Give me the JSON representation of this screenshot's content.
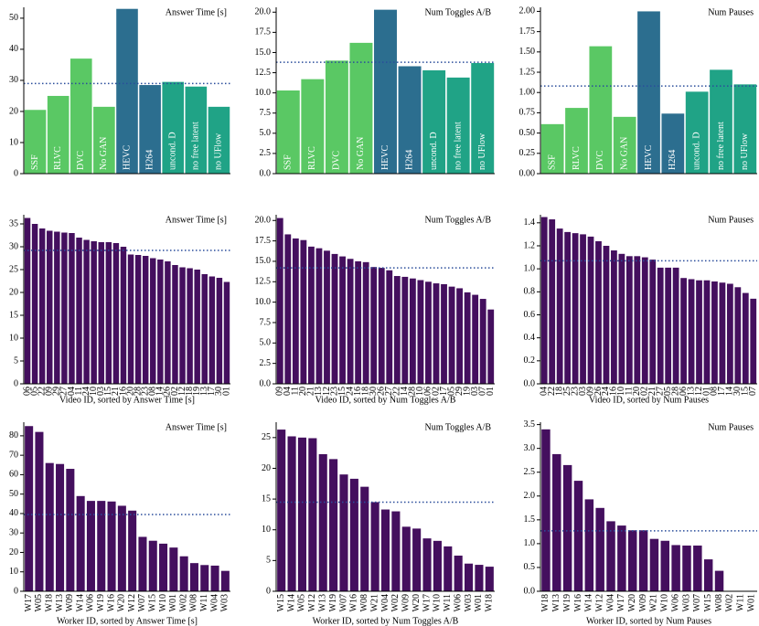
{
  "chart_data": [
    {
      "type": "bar",
      "title": "Answer Time [s]",
      "categories": [
        "SSF",
        "RLVC",
        "DVC",
        "No GAN",
        "HEVC",
        "H264",
        "uncond. D",
        "no free latent",
        "no UFlow"
      ],
      "values": [
        20.5,
        25,
        37,
        21.5,
        53,
        28.5,
        29.5,
        28,
        21.5
      ],
      "colors": [
        "#5ac864",
        "#5ac864",
        "#5ac864",
        "#5ac864",
        "#2c6e8f",
        "#2c6e8f",
        "#20a386",
        "#20a386",
        "#20a386"
      ],
      "mean": 29,
      "ylim": [
        0,
        53.5
      ],
      "yticks": [
        0,
        10,
        20,
        30,
        40,
        50
      ]
    },
    {
      "type": "bar",
      "title": "Num Toggles A/B",
      "categories": [
        "SSF",
        "RLVC",
        "DVC",
        "No GAN",
        "HEVC",
        "H264",
        "uncond. D",
        "no free latent",
        "no UFlow"
      ],
      "values": [
        10.3,
        11.7,
        14,
        16.2,
        20.3,
        13.3,
        12.8,
        11.9,
        13.7
      ],
      "colors": [
        "#5ac864",
        "#5ac864",
        "#5ac864",
        "#5ac864",
        "#2c6e8f",
        "#2c6e8f",
        "#20a386",
        "#20a386",
        "#20a386"
      ],
      "mean": 13.8,
      "ylim": [
        0,
        20.6
      ],
      "yticks": [
        {
          "value": 0,
          "label": "0.0"
        },
        2.5,
        {
          "value": 5,
          "label": "5.0"
        },
        7.5,
        {
          "value": 10,
          "label": "10.0"
        },
        12.5,
        {
          "value": 15,
          "label": "15.0"
        },
        17.5,
        {
          "value": 20,
          "label": "20.0"
        }
      ]
    },
    {
      "type": "bar",
      "title": "Num Pauses",
      "categories": [
        "SSF",
        "RLVC",
        "DVC",
        "No GAN",
        "HEVC",
        "H264",
        "uncond. D",
        "no free latent",
        "no UFlow"
      ],
      "values": [
        0.61,
        0.81,
        1.57,
        0.7,
        2.0,
        0.74,
        1.01,
        1.28,
        1.1
      ],
      "colors": [
        "#5ac864",
        "#5ac864",
        "#5ac864",
        "#5ac864",
        "#2c6e8f",
        "#2c6e8f",
        "#20a386",
        "#20a386",
        "#20a386"
      ],
      "mean": 1.08,
      "ylim": [
        0,
        2.05
      ],
      "yticks": [
        {
          "value": 0,
          "label": "0.00"
        },
        0.25,
        {
          "value": 0.5,
          "label": "0.50"
        },
        0.75,
        {
          "value": 1,
          "label": "1.00"
        },
        1.25,
        {
          "value": 1.5,
          "label": "1.50"
        },
        1.75,
        {
          "value": 2,
          "label": "2.00"
        }
      ]
    },
    {
      "type": "bar",
      "title": "Answer Time [s]",
      "xlabel": "Video ID, sorted by Answer Time [s]",
      "categories": [
        "06",
        "05",
        "22",
        "09",
        "29",
        "27",
        "04",
        "11",
        "24",
        "10",
        "03",
        "15",
        "21",
        "16",
        "20",
        "28",
        "23",
        "08",
        "14",
        "26",
        "02",
        "12",
        "18",
        "19",
        "13",
        "17",
        "30",
        "01"
      ],
      "values": [
        36.3,
        35,
        34,
        33.5,
        33.3,
        33.1,
        33,
        32,
        31.5,
        31.2,
        31,
        31,
        30.8,
        30,
        28.3,
        28.2,
        28,
        27.5,
        27.2,
        26.8,
        26,
        25.5,
        25.3,
        25,
        24,
        23.5,
        23.2,
        22.3
      ],
      "color": "#440f5e",
      "mean": 29.2,
      "ylim": [
        0,
        37
      ],
      "yticks": [
        0,
        5,
        10,
        15,
        20,
        25,
        30,
        35
      ]
    },
    {
      "type": "bar",
      "title": "Num Toggles A/B",
      "xlabel": "Video ID, sorted by Num Toggles A/B",
      "categories": [
        "09",
        "04",
        "11",
        "20",
        "21",
        "13",
        "12",
        "23",
        "15",
        "24",
        "16",
        "18",
        "30",
        "26",
        "27",
        "22",
        "14",
        "28",
        "10",
        "06",
        "02",
        "17",
        "05",
        "29",
        "19",
        "03",
        "07",
        "01"
      ],
      "values": [
        20.3,
        18.3,
        17.8,
        17.6,
        16.8,
        16.6,
        16.3,
        15.9,
        15.6,
        15.3,
        15.0,
        14.9,
        14.3,
        14.2,
        13.9,
        13.2,
        13.1,
        12.9,
        12.7,
        12.5,
        12.3,
        12.2,
        11.9,
        11.7,
        11.2,
        10.9,
        10.4,
        9.1
      ],
      "color": "#440f5e",
      "mean": 14.2,
      "ylim": [
        0,
        20.7
      ],
      "yticks": [
        {
          "value": 0,
          "label": "0.0"
        },
        2.5,
        {
          "value": 5,
          "label": "5.0"
        },
        7.5,
        {
          "value": 10,
          "label": "10.0"
        },
        12.5,
        {
          "value": 15,
          "label": "15.0"
        },
        17.5,
        {
          "value": 20,
          "label": "20.0"
        }
      ]
    },
    {
      "type": "bar",
      "title": "Num Pauses",
      "xlabel": "Video ID, sorted by Num Pauses",
      "categories": [
        "04",
        "22",
        "18",
        "25",
        "23",
        "03",
        "09",
        "26",
        "24",
        "16",
        "10",
        "11",
        "20",
        "02",
        "21",
        "27",
        "05",
        "28",
        "06",
        "13",
        "12",
        "01",
        "08",
        "17",
        "14",
        "30",
        "15",
        "07"
      ],
      "values": [
        1.45,
        1.43,
        1.35,
        1.32,
        1.31,
        1.3,
        1.28,
        1.24,
        1.2,
        1.16,
        1.13,
        1.11,
        1.11,
        1.1,
        1.08,
        1.01,
        1.01,
        1.01,
        0.92,
        0.91,
        0.9,
        0.9,
        0.89,
        0.88,
        0.87,
        0.84,
        0.79,
        0.74
      ],
      "color": "#440f5e",
      "mean": 1.07,
      "ylim": [
        0,
        1.47
      ],
      "yticks": [
        {
          "value": 0,
          "label": "0.0"
        },
        0.2,
        0.4,
        0.6,
        0.8,
        {
          "value": 1,
          "label": "1.0"
        },
        1.2,
        1.4
      ]
    },
    {
      "type": "bar",
      "title": "Answer Time [s]",
      "xlabel": "Worker ID, sorted by Answer Time [s]",
      "categories": [
        "W17",
        "W05",
        "W18",
        "W13",
        "W09",
        "W14",
        "W06",
        "W19",
        "W16",
        "W20",
        "W12",
        "W07",
        "W15",
        "W10",
        "W01",
        "W02",
        "W08",
        "W11",
        "W04",
        "W03"
      ],
      "values": [
        85,
        82,
        66,
        65.5,
        63,
        49,
        46.5,
        46.5,
        46.2,
        44,
        41.5,
        28,
        26,
        24.5,
        22.5,
        18,
        14.5,
        13.5,
        13.2,
        10.5
      ],
      "color": "#440f5e",
      "mean": 39.5,
      "ylim": [
        0,
        87
      ],
      "yticks": [
        0,
        10,
        20,
        30,
        40,
        50,
        60,
        70,
        80
      ]
    },
    {
      "type": "bar",
      "title": "Num Toggles A/B",
      "xlabel": "Worker ID, sorted by Num Toggles A/B",
      "categories": [
        "W15",
        "W14",
        "W05",
        "W12",
        "W13",
        "W19",
        "W07",
        "W16",
        "W08",
        "W21",
        "W04",
        "W02",
        "W09",
        "W20",
        "W17",
        "W10",
        "W11",
        "W06",
        "W03",
        "W01",
        "W18"
      ],
      "values": [
        26.3,
        25.2,
        25.0,
        24.9,
        22.3,
        21.5,
        19,
        18.3,
        17,
        14.5,
        13.3,
        13,
        10.5,
        10.2,
        8.6,
        8.2,
        7.3,
        5.8,
        4.5,
        4.3,
        4.0
      ],
      "color": "#440f5e",
      "mean": 14.5,
      "ylim": [
        0,
        27.5
      ],
      "yticks": [
        0,
        5,
        10,
        15,
        20,
        25
      ]
    },
    {
      "type": "bar",
      "title": "Num Pauses",
      "xlabel": "Worker ID, sorted by Num Pauses",
      "categories": [
        "W18",
        "W13",
        "W19",
        "W16",
        "W14",
        "W12",
        "W04",
        "W17",
        "W20",
        "W09",
        "W21",
        "W10",
        "W06",
        "W03",
        "W07",
        "W15",
        "W08",
        "W02",
        "W11",
        "W01"
      ],
      "values": [
        3.4,
        2.88,
        2.65,
        2.32,
        1.93,
        1.75,
        1.47,
        1.38,
        1.28,
        1.28,
        1.1,
        1.06,
        0.97,
        0.96,
        0.96,
        0.67,
        0.43,
        0,
        0,
        0
      ],
      "color": "#440f5e",
      "mean": 1.27,
      "ylim": [
        0,
        3.55
      ],
      "yticks": [
        {
          "value": 0,
          "label": "0.0"
        },
        0.5,
        {
          "value": 1,
          "label": "1.0"
        },
        1.5,
        {
          "value": 2,
          "label": "2.0"
        },
        2.5,
        {
          "value": 3,
          "label": "3.0"
        },
        3.5
      ]
    }
  ]
}
